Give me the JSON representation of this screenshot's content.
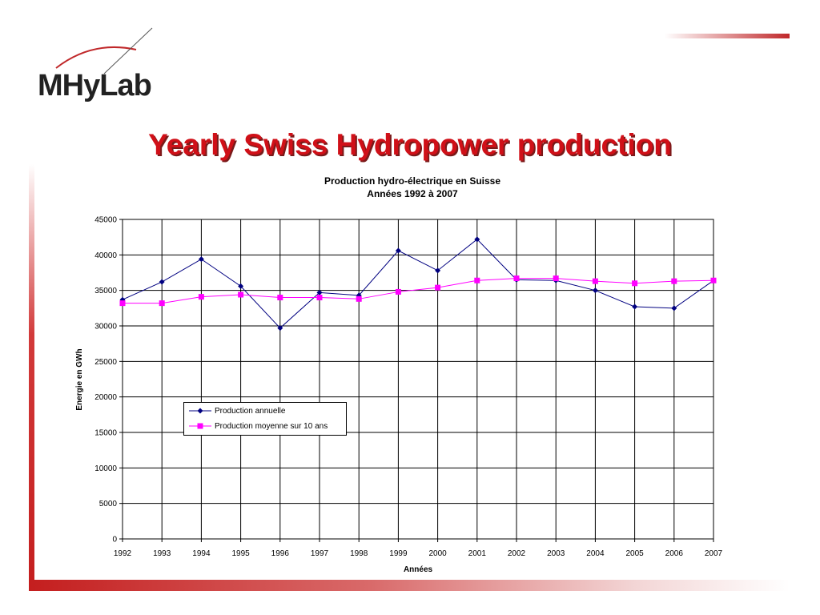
{
  "slide": {
    "logo_text": "MHyLab",
    "title": "Yearly Swiss Hydropower production"
  },
  "colors": {
    "accent": "#c41e1e",
    "title": "#d01018",
    "series_annual": "#000080",
    "series_average": "#ff00ff"
  },
  "chart_data": {
    "type": "line",
    "title": "Production hydro-électrique en Suisse",
    "subtitle": "Années 1992 à 2007",
    "xlabel": "Années",
    "ylabel": "Energie en GWh",
    "ylim": [
      0,
      45000
    ],
    "y_ticks": [
      0,
      5000,
      10000,
      15000,
      20000,
      25000,
      30000,
      35000,
      40000,
      45000
    ],
    "grid": true,
    "legend_position": "bottom-left",
    "categories": [
      "1992",
      "1993",
      "1994",
      "1995",
      "1996",
      "1997",
      "1998",
      "1999",
      "2000",
      "2001",
      "2002",
      "2003",
      "2004",
      "2005",
      "2006",
      "2007"
    ],
    "series": [
      {
        "name": "Production annuelle",
        "marker": "diamond",
        "color": "#000080",
        "values": [
          33700,
          36200,
          39400,
          35600,
          29700,
          34700,
          34300,
          40600,
          37800,
          42200,
          36500,
          36400,
          35000,
          32700,
          32500,
          36400
        ]
      },
      {
        "name": "Production moyenne sur 10 ans",
        "marker": "square",
        "color": "#ff00ff",
        "values": [
          33200,
          33200,
          34100,
          34400,
          34000,
          34000,
          33800,
          34800,
          35400,
          36400,
          36700,
          36700,
          36300,
          36000,
          36300,
          36400
        ]
      }
    ]
  }
}
